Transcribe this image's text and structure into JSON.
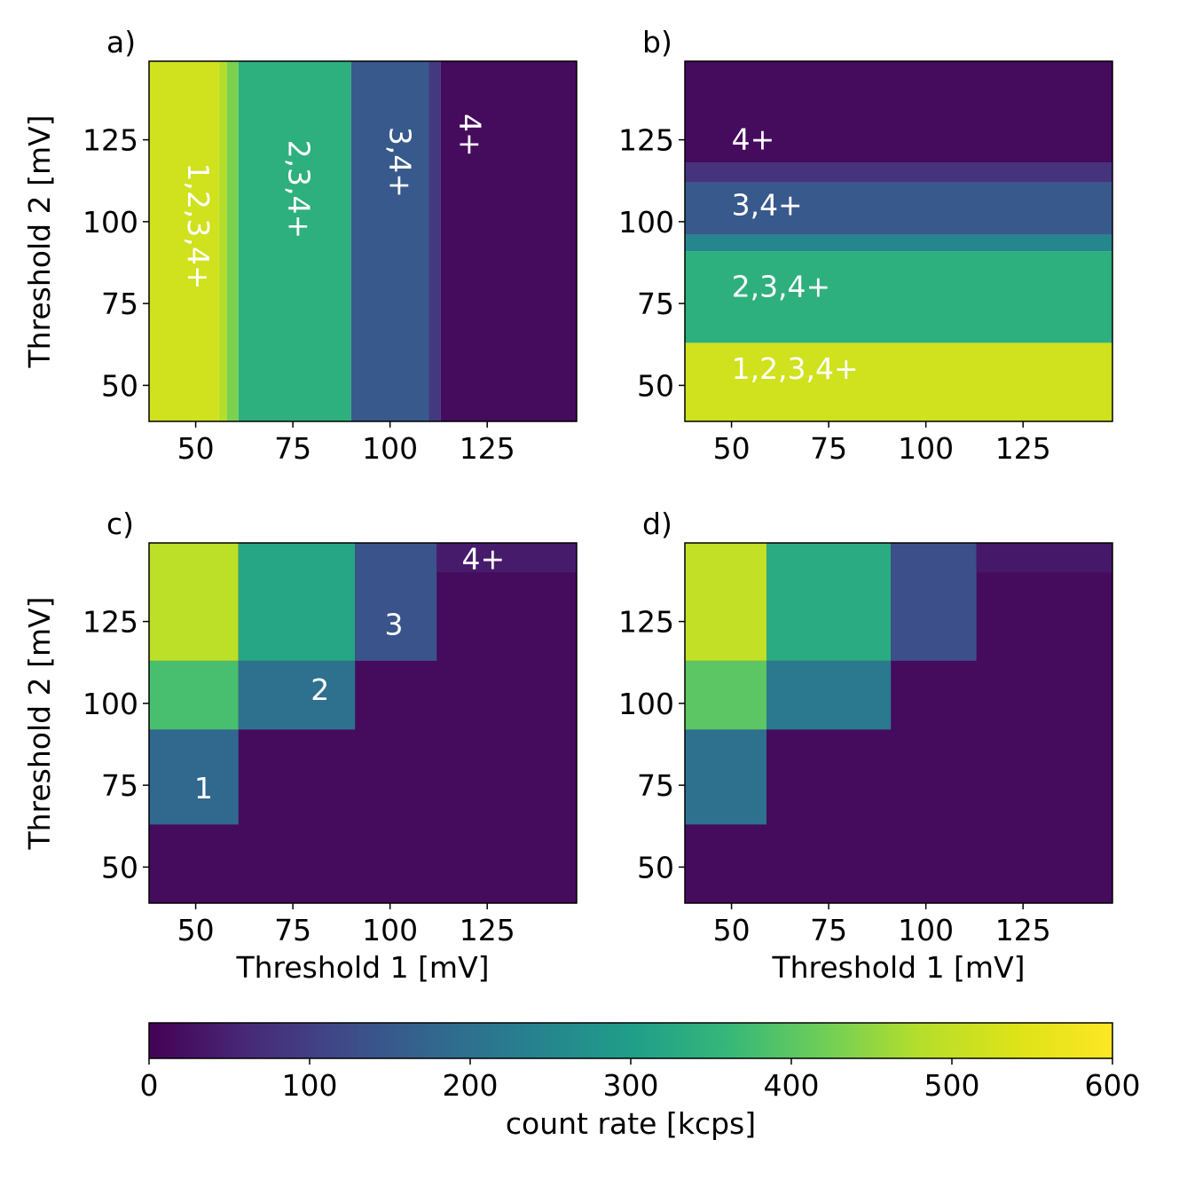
{
  "chart_data": {
    "type": "heatmap",
    "shared_x_range_mV": [
      38,
      148
    ],
    "shared_y_range_mV": [
      39,
      149
    ],
    "x_ticks": [
      50,
      75,
      100,
      125
    ],
    "y_ticks": [
      50,
      75,
      100,
      125
    ],
    "xlabel": "Threshold 1 [mV]",
    "ylabel": "Threshold 2 [mV]",
    "panels": [
      {
        "id": "a",
        "panel_label": "a)",
        "description": "rate depends only on Threshold 1",
        "regions": [
          {
            "x": [
              38,
              56
            ],
            "y": [
              39,
              149
            ],
            "value": 520
          },
          {
            "x": [
              56,
              58
            ],
            "y": [
              39,
              149
            ],
            "value": 480
          },
          {
            "x": [
              58,
              61
            ],
            "y": [
              39,
              149
            ],
            "value": 430
          },
          {
            "x": [
              61,
              90
            ],
            "y": [
              39,
              149
            ],
            "value": 340
          },
          {
            "x": [
              90,
              110
            ],
            "y": [
              39,
              149
            ],
            "value": 150
          },
          {
            "x": [
              110,
              113
            ],
            "y": [
              39,
              149
            ],
            "value": 90
          },
          {
            "x": [
              113,
              148
            ],
            "y": [
              39,
              149
            ],
            "value": 15
          }
        ],
        "annotations": [
          {
            "text": "1,2,3,4+",
            "x": 48,
            "y": 118,
            "rotate": 90
          },
          {
            "text": "2,3,4+",
            "x": 74,
            "y": 125,
            "rotate": 90
          },
          {
            "text": "3,4+",
            "x": 100,
            "y": 129,
            "rotate": 90
          },
          {
            "text": "4+",
            "x": 118,
            "y": 133,
            "rotate": 90
          }
        ],
        "has_xlabel": false,
        "has_ylabel": true
      },
      {
        "id": "b",
        "panel_label": "b)",
        "description": "rate depends only on Threshold 2",
        "regions": [
          {
            "x": [
              38,
              148
            ],
            "y": [
              39,
              63
            ],
            "value": 520
          },
          {
            "x": [
              38,
              148
            ],
            "y": [
              63,
              91
            ],
            "value": 340
          },
          {
            "x": [
              38,
              148
            ],
            "y": [
              91,
              96
            ],
            "value": 250
          },
          {
            "x": [
              38,
              148
            ],
            "y": [
              96,
              112
            ],
            "value": 150
          },
          {
            "x": [
              38,
              148
            ],
            "y": [
              112,
              118
            ],
            "value": 80
          },
          {
            "x": [
              38,
              148
            ],
            "y": [
              118,
              149
            ],
            "value": 15
          }
        ],
        "annotations": [
          {
            "text": "4+",
            "x": 50,
            "y": 122,
            "rotate": 0
          },
          {
            "text": "3,4+",
            "x": 50,
            "y": 102,
            "rotate": 0
          },
          {
            "text": "2,3,4+",
            "x": 50,
            "y": 77,
            "rotate": 0
          },
          {
            "text": "1,2,3,4+",
            "x": 50,
            "y": 52,
            "rotate": 0
          }
        ],
        "has_xlabel": false,
        "has_ylabel": false
      },
      {
        "id": "c",
        "panel_label": "c)",
        "description": "staircase of single photon-number bands",
        "regions": [
          {
            "x": [
              38,
              148
            ],
            "y": [
              39,
              149
            ],
            "value": 15
          },
          {
            "x": [
              38,
              61
            ],
            "y": [
              63,
              92
            ],
            "value": 180
          },
          {
            "x": [
              38,
              61
            ],
            "y": [
              92,
              113
            ],
            "value": 380
          },
          {
            "x": [
              38,
              61
            ],
            "y": [
              113,
              149
            ],
            "value": 490
          },
          {
            "x": [
              61,
              91
            ],
            "y": [
              92,
              113
            ],
            "value": 200
          },
          {
            "x": [
              61,
              91
            ],
            "y": [
              113,
              149
            ],
            "value": 320
          },
          {
            "x": [
              91,
              112
            ],
            "y": [
              113,
              149
            ],
            "value": 140
          },
          {
            "x": [
              112,
              148
            ],
            "y": [
              140,
              149
            ],
            "value": 40
          }
        ],
        "annotations": [
          {
            "text": "1",
            "x": 52,
            "y": 71,
            "rotate": 0
          },
          {
            "text": "2",
            "x": 82,
            "y": 101,
            "rotate": 0
          },
          {
            "text": "3",
            "x": 101,
            "y": 121,
            "rotate": 0
          },
          {
            "text": "4+",
            "x": 124,
            "y": 141,
            "rotate": 0
          }
        ],
        "has_xlabel": true,
        "has_ylabel": true
      },
      {
        "id": "d",
        "panel_label": "d)",
        "description": "simulated staircase",
        "regions": [
          {
            "x": [
              38,
              148
            ],
            "y": [
              39,
              149
            ],
            "value": 15
          },
          {
            "x": [
              38,
              59
            ],
            "y": [
              63,
              92
            ],
            "value": 200
          },
          {
            "x": [
              38,
              59
            ],
            "y": [
              92,
              113
            ],
            "value": 400
          },
          {
            "x": [
              38,
              59
            ],
            "y": [
              113,
              149
            ],
            "value": 500
          },
          {
            "x": [
              59,
              91
            ],
            "y": [
              92,
              113
            ],
            "value": 220
          },
          {
            "x": [
              59,
              91
            ],
            "y": [
              113,
              149
            ],
            "value": 330
          },
          {
            "x": [
              91,
              113
            ],
            "y": [
              113,
              149
            ],
            "value": 130
          },
          {
            "x": [
              113,
              148
            ],
            "y": [
              140,
              149
            ],
            "value": 35
          }
        ],
        "annotations": [],
        "has_xlabel": true,
        "has_ylabel": false
      }
    ],
    "colorbar": {
      "colormap": "viridis",
      "range": [
        0,
        600
      ],
      "ticks": [
        0,
        100,
        200,
        300,
        400,
        500,
        600
      ],
      "label": "count rate [kcps]"
    }
  }
}
